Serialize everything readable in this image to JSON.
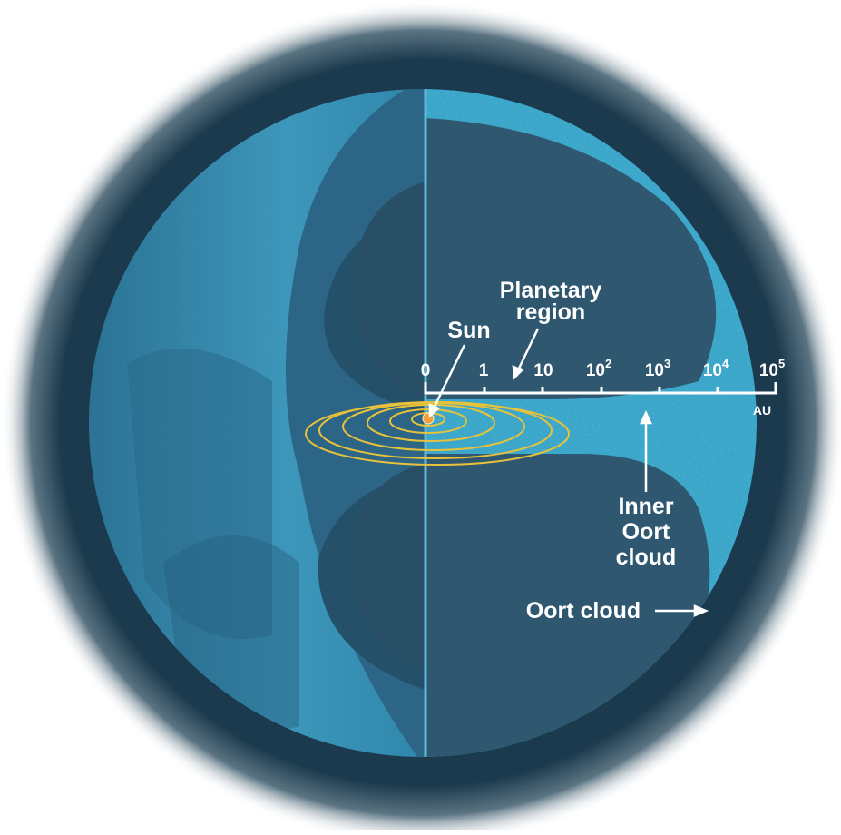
{
  "labels": {
    "planetary_region_line1": "Planetary",
    "planetary_region_line2": "region",
    "sun": "Sun",
    "inner_oort_line1": "Inner",
    "inner_oort_line2": "Oort",
    "inner_oort_line3": "cloud",
    "oort_cloud": "Oort cloud"
  },
  "scale": {
    "unit": "AU",
    "ticks": [
      {
        "base": "0",
        "exp": ""
      },
      {
        "base": "1",
        "exp": ""
      },
      {
        "base": "10",
        "exp": ""
      },
      {
        "base": "10",
        "exp": "2"
      },
      {
        "base": "10",
        "exp": "3"
      },
      {
        "base": "10",
        "exp": "4"
      },
      {
        "base": "10",
        "exp": "5"
      }
    ]
  },
  "colors": {
    "halo": "#1b3a4e",
    "outer_shell": "#3aa6c9",
    "left_face": "#2f7fa3",
    "dark_interior": "#2f5870",
    "darker_interior": "#274a60",
    "orbits": "#e8c23a",
    "sun": "#f0a040",
    "text": "#ffffff"
  }
}
